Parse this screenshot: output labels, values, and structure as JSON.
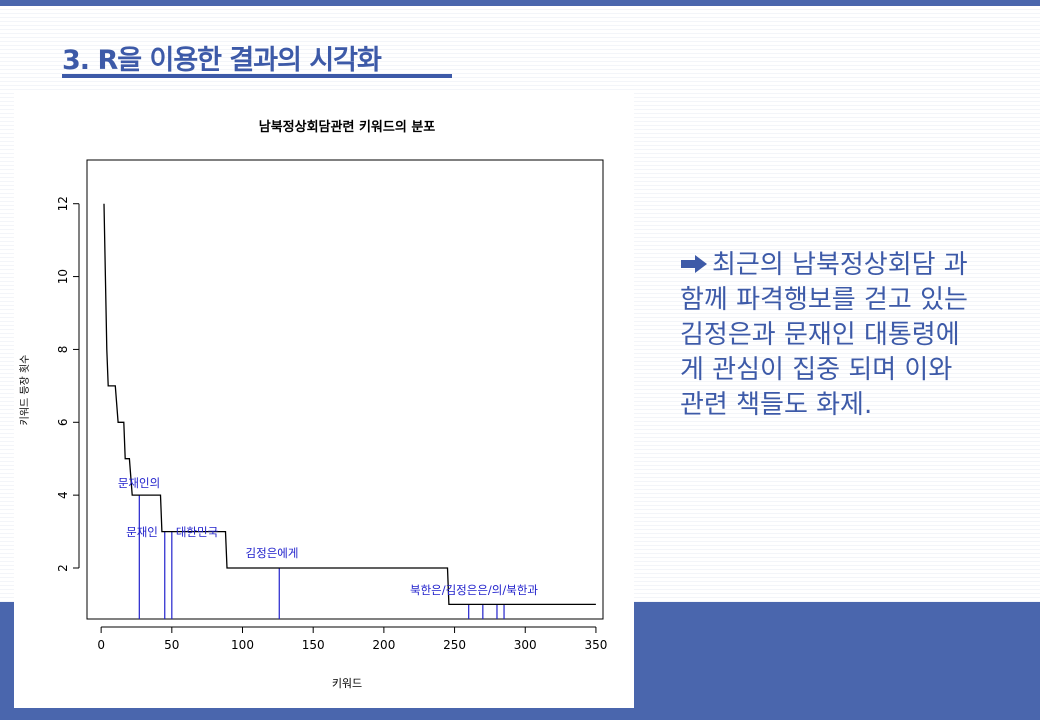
{
  "slide": {
    "title": "3. R을 이용한 결과의 시각화",
    "commentary": "최근의 남북정상회담 과 함께 파격행보를 걷고 있는 김정은과 문재인 대통령에게 관심이 집중 되며 이와 관련 책들도 화제.",
    "commentary_icon": "right-arrow-icon",
    "colors": {
      "accent": "#4a66ad",
      "title": "#3d5aa8",
      "series_line": "#000000",
      "annotation": "#2222cc"
    }
  },
  "chart_data": {
    "type": "line",
    "title": "남북정상회담관련 키워드의 분포",
    "xlabel": "키워드",
    "ylabel": "키워드 등장 횟수",
    "xlim": [
      -10,
      355
    ],
    "ylim": [
      0.6,
      13.2
    ],
    "xticks": [
      0,
      50,
      100,
      150,
      200,
      250,
      300,
      350
    ],
    "yticks": [
      2,
      4,
      6,
      8,
      10,
      12
    ],
    "grid": false,
    "legend": "none",
    "series": [
      {
        "points": [
          [
            2,
            12
          ],
          [
            3,
            10
          ],
          [
            4,
            8
          ],
          [
            5,
            7
          ],
          [
            10,
            7
          ],
          [
            11,
            6.5
          ],
          [
            12,
            6
          ],
          [
            16,
            6
          ],
          [
            17,
            5
          ],
          [
            20,
            5
          ],
          [
            21,
            4.5
          ],
          [
            22,
            4
          ],
          [
            42,
            4
          ],
          [
            43,
            3
          ],
          [
            88,
            3
          ],
          [
            89,
            2
          ],
          [
            245,
            2
          ],
          [
            246,
            1
          ],
          [
            350,
            1
          ]
        ]
      }
    ],
    "annotations": [
      {
        "label": "문재인의",
        "x": 27,
        "y": 4
      },
      {
        "label": "문재인",
        "x": 45,
        "y": 3
      },
      {
        "label": "대한민국",
        "x": 50,
        "y": 3
      },
      {
        "label": "김정은에게",
        "x": 126,
        "y": 2
      },
      {
        "label": "북한은",
        "x": 260,
        "y": 1
      },
      {
        "label": "김정은은",
        "x": 270,
        "y": 1
      },
      {
        "label": "의",
        "x": 280,
        "y": 1
      },
      {
        "label": "북한과",
        "x": 285,
        "y": 1
      }
    ],
    "annotation_text": {
      "a0": "문재인의",
      "a1": "문재인",
      "a2": "대한민국",
      "a3": "김정은에게",
      "a4": "북한은/김정은은/의/북한과"
    }
  }
}
